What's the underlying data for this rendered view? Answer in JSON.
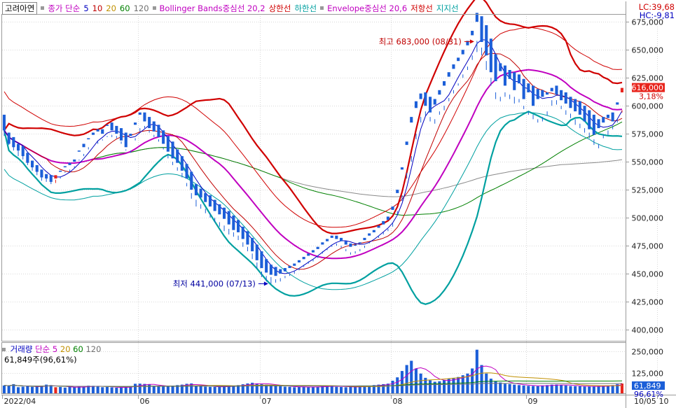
{
  "header": {
    "ticker": "고려아연",
    "legend": [
      {
        "text": "종가 단순",
        "color": "#c000c0"
      },
      {
        "text": "5",
        "color": "#0000c0"
      },
      {
        "text": "10",
        "color": "#c00000"
      },
      {
        "text": "20",
        "color": "#c09000"
      },
      {
        "text": "60",
        "color": "#008000"
      },
      {
        "text": "120",
        "color": "#707070"
      },
      {
        "text": "Bollinger Bands중심선 20,2",
        "color": "#c000c0"
      },
      {
        "text": "상한선",
        "color": "#d00000"
      },
      {
        "text": "하한선",
        "color": "#00a0a0"
      },
      {
        "text": "Envelope중심선 20,6",
        "color": "#c000c0"
      },
      {
        "text": "저항선",
        "color": "#d00000"
      },
      {
        "text": "지지선",
        "color": "#00a0a0"
      }
    ],
    "lc": "LC:39,68",
    "hc": "HC:-9,81"
  },
  "price_annotations": {
    "high": "최고 683,000 (08/31)",
    "low": "최저 441,000 (07/13)",
    "current_price": "616,000",
    "current_change": "3,18%"
  },
  "volume_panel": {
    "legend": [
      {
        "text": "거래량",
        "color": "#0000c0"
      },
      {
        "text": "단순",
        "color": "#c000c0"
      },
      {
        "text": "5",
        "color": "#c000c0"
      },
      {
        "text": "20",
        "color": "#c09000"
      },
      {
        "text": "60",
        "color": "#008000"
      },
      {
        "text": "120",
        "color": "#707070"
      }
    ],
    "info": "61,849주(96,61%)",
    "current_volume": "61,849",
    "current_pct": "96,61%"
  },
  "colors": {
    "up": "#e8251d",
    "down": "#1c5fd8",
    "grid": "#d8d8d8"
  },
  "chart_data": {
    "type": "candlestick",
    "y_ticks": [
      "675,000",
      "650,000",
      "625,000",
      "600,000",
      "575,000",
      "550,000",
      "525,000",
      "500,000",
      "475,000",
      "450,000",
      "425,000",
      "400,000"
    ],
    "ylim": [
      390000,
      682000
    ],
    "volume_ticks": [
      "250,000",
      "125,000"
    ],
    "volume_ylim": [
      0,
      300000
    ],
    "x_ticks": [
      "2022/04",
      "06",
      "07",
      "08",
      "09",
      "10",
      "10/05"
    ],
    "x_tick_indices": [
      0,
      29,
      55,
      83,
      112,
      140
    ],
    "candles": [
      [
        592,
        585,
        578,
        573,
        50000
      ],
      [
        576,
        576,
        566,
        565,
        48000
      ],
      [
        572,
        567,
        563,
        560,
        58000
      ],
      [
        566,
        563,
        560,
        555,
        40000
      ],
      [
        564,
        560,
        555,
        552,
        43000
      ],
      [
        558,
        555,
        549,
        547,
        45000
      ],
      [
        551,
        551,
        545,
        542,
        42000
      ],
      [
        547,
        544,
        541,
        538,
        45000
      ],
      [
        543,
        541,
        536,
        533,
        47000
      ],
      [
        539,
        536,
        535,
        532,
        55000
      ],
      [
        538,
        535,
        532,
        530,
        52000
      ],
      [
        535,
        534,
        538,
        531,
        40000
      ],
      [
        542,
        537,
        541,
        535,
        41000
      ],
      [
        546,
        541,
        545,
        540,
        38000
      ],
      [
        549,
        543,
        547,
        541,
        42000
      ],
      [
        552,
        546,
        550,
        544,
        39000
      ],
      [
        560,
        552,
        559,
        551,
        43000
      ],
      [
        566,
        557,
        563,
        555,
        42000
      ],
      [
        571,
        563,
        570,
        561,
        49000
      ],
      [
        576,
        565,
        574,
        565,
        48000
      ],
      [
        579,
        568,
        577,
        566,
        46000
      ],
      [
        579,
        570,
        575,
        569,
        40000
      ],
      [
        583,
        573,
        582,
        572,
        41000
      ],
      [
        585,
        574,
        578,
        572,
        39000
      ],
      [
        582,
        573,
        575,
        571,
        37000
      ],
      [
        580,
        568,
        569,
        566,
        37000
      ],
      [
        576,
        561,
        563,
        560,
        43000
      ],
      [
        575,
        560,
        573,
        558,
        46000
      ],
      [
        585,
        571,
        583,
        569,
        60000
      ],
      [
        594,
        580,
        592,
        577,
        61000
      ],
      [
        594,
        582,
        586,
        580,
        59000
      ],
      [
        590,
        578,
        580,
        576,
        56000
      ],
      [
        586,
        574,
        577,
        572,
        45000
      ],
      [
        583,
        570,
        572,
        568,
        43000
      ],
      [
        578,
        563,
        566,
        561,
        43000
      ],
      [
        573,
        556,
        559,
        553,
        46000
      ],
      [
        568,
        550,
        553,
        547,
        49000
      ],
      [
        561,
        545,
        549,
        542,
        52000
      ],
      [
        555,
        540,
        542,
        536,
        55000
      ],
      [
        548,
        531,
        535,
        528,
        60000
      ],
      [
        541,
        522,
        525,
        517,
        62000
      ],
      [
        530,
        516,
        520,
        510,
        48000
      ],
      [
        526,
        512,
        518,
        508,
        45000
      ],
      [
        522,
        508,
        514,
        504,
        43000
      ],
      [
        520,
        504,
        510,
        500,
        42000
      ],
      [
        516,
        500,
        506,
        496,
        41000
      ],
      [
        512,
        496,
        503,
        492,
        43000
      ],
      [
        509,
        493,
        499,
        488,
        45000
      ],
      [
        506,
        490,
        494,
        485,
        47000
      ],
      [
        502,
        487,
        489,
        483,
        49000
      ],
      [
        498,
        484,
        487,
        480,
        52000
      ],
      [
        492,
        478,
        481,
        474,
        57000
      ],
      [
        488,
        474,
        476,
        470,
        62000
      ],
      [
        482,
        468,
        470,
        463,
        66000
      ],
      [
        476,
        460,
        462,
        455,
        62000
      ],
      [
        470,
        452,
        455,
        447,
        58000
      ],
      [
        463,
        448,
        451,
        443,
        55000
      ],
      [
        458,
        447,
        449,
        441,
        53000
      ],
      [
        456,
        445,
        448,
        442,
        48000
      ],
      [
        454,
        446,
        450,
        443,
        45000
      ],
      [
        455,
        448,
        452,
        446,
        43000
      ],
      [
        457,
        450,
        455,
        448,
        42000
      ],
      [
        459,
        452,
        457,
        450,
        40000
      ],
      [
        462,
        455,
        460,
        453,
        41000
      ],
      [
        465,
        458,
        463,
        456,
        43000
      ],
      [
        468,
        461,
        466,
        459,
        40000
      ],
      [
        471,
        463,
        469,
        461,
        42000
      ],
      [
        474,
        466,
        472,
        464,
        42000
      ],
      [
        478,
        470,
        476,
        468,
        45000
      ],
      [
        481,
        473,
        479,
        471,
        48000
      ],
      [
        484,
        476,
        482,
        474,
        50000
      ],
      [
        484,
        477,
        481,
        475,
        42000
      ],
      [
        482,
        475,
        479,
        473,
        41000
      ],
      [
        479,
        472,
        476,
        470,
        40000
      ],
      [
        477,
        469,
        474,
        467,
        41000
      ],
      [
        476,
        470,
        475,
        468,
        43000
      ],
      [
        478,
        472,
        477,
        470,
        45000
      ],
      [
        482,
        475,
        480,
        473,
        47000
      ],
      [
        486,
        478,
        484,
        477,
        49000
      ],
      [
        489,
        481,
        487,
        480,
        52000
      ],
      [
        493,
        484,
        491,
        482,
        55000
      ],
      [
        497,
        487,
        494,
        485,
        58000
      ],
      [
        501,
        490,
        498,
        488,
        61000
      ],
      [
        510,
        495,
        507,
        492,
        78000
      ],
      [
        525,
        506,
        522,
        503,
        98000
      ],
      [
        545,
        520,
        543,
        515,
        135000
      ],
      [
        568,
        540,
        565,
        535,
        170000
      ],
      [
        590,
        555,
        585,
        550,
        195000
      ],
      [
        604,
        575,
        598,
        570,
        150000
      ],
      [
        611,
        590,
        606,
        585,
        120000
      ],
      [
        612,
        595,
        600,
        591,
        95000
      ],
      [
        608,
        590,
        594,
        586,
        80000
      ],
      [
        606,
        588,
        601,
        584,
        72000
      ],
      [
        614,
        595,
        610,
        592,
        75000
      ],
      [
        622,
        600,
        618,
        596,
        82000
      ],
      [
        630,
        607,
        626,
        604,
        89000
      ],
      [
        637,
        614,
        633,
        611,
        95000
      ],
      [
        643,
        620,
        640,
        618,
        100000
      ],
      [
        650,
        628,
        646,
        625,
        110000
      ],
      [
        658,
        635,
        654,
        632,
        120000
      ],
      [
        667,
        645,
        663,
        641,
        150000
      ],
      [
        683,
        658,
        675,
        648,
        260000
      ],
      [
        680,
        652,
        657,
        645,
        170000
      ],
      [
        672,
        640,
        645,
        632,
        120000
      ],
      [
        660,
        625,
        630,
        618,
        90000
      ],
      [
        646,
        612,
        622,
        606,
        75000
      ],
      [
        638,
        608,
        631,
        604,
        68000
      ],
      [
        636,
        612,
        618,
        608,
        60000
      ],
      [
        632,
        610,
        624,
        606,
        58000
      ],
      [
        630,
        608,
        614,
        602,
        55000
      ],
      [
        628,
        606,
        620,
        603,
        52000
      ],
      [
        624,
        600,
        606,
        597,
        50000
      ],
      [
        620,
        595,
        612,
        592,
        48000
      ],
      [
        618,
        592,
        600,
        588,
        47000
      ],
      [
        615,
        588,
        606,
        585,
        46000
      ],
      [
        614,
        590,
        608,
        586,
        50000
      ],
      [
        612,
        595,
        610,
        591,
        52000
      ],
      [
        616,
        605,
        613,
        600,
        55000
      ],
      [
        618,
        605,
        610,
        601,
        56000
      ],
      [
        614,
        600,
        605,
        597,
        53000
      ],
      [
        612,
        596,
        602,
        592,
        50000
      ],
      [
        608,
        593,
        598,
        589,
        47000
      ],
      [
        606,
        588,
        595,
        583,
        46000
      ],
      [
        604,
        584,
        592,
        580,
        45000
      ],
      [
        600,
        580,
        586,
        576,
        44000
      ],
      [
        596,
        576,
        579,
        571,
        44000
      ],
      [
        592,
        570,
        574,
        565,
        45000
      ],
      [
        588,
        566,
        580,
        562,
        46000
      ],
      [
        590,
        574,
        585,
        571,
        48000
      ],
      [
        592,
        578,
        589,
        574,
        50000
      ],
      [
        594,
        582,
        586,
        579,
        52000
      ],
      [
        603,
        588,
        601,
        585,
        58000
      ],
      [
        612,
        596,
        616,
        594,
        61849
      ]
    ]
  }
}
